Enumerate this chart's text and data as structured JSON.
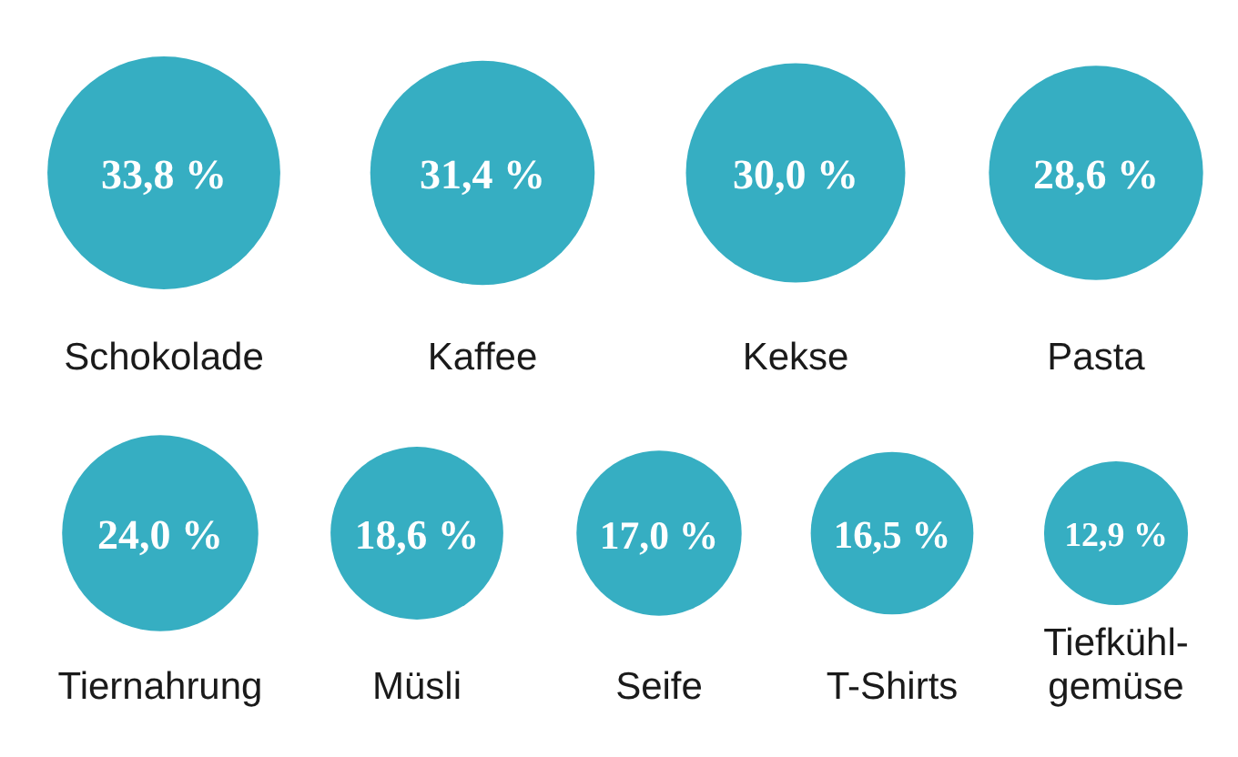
{
  "chart_data": {
    "type": "other",
    "categories": [
      "Schokolade",
      "Kaffee",
      "Kekse",
      "Pasta",
      "Tiernahrung",
      "Müsli",
      "Seife",
      "T-Shirts",
      "Tiefkühl-gemüse"
    ],
    "values": [
      33.8,
      31.4,
      30.0,
      28.6,
      24.0,
      18.6,
      17.0,
      16.5,
      12.9
    ],
    "value_labels": [
      "33,8 %",
      "31,4 %",
      "30,0 %",
      "28,6 %",
      "24,0 %",
      "18,6 %",
      "17,0 %",
      "16,5 %",
      "12,9 %"
    ],
    "color": "#36aec2"
  }
}
